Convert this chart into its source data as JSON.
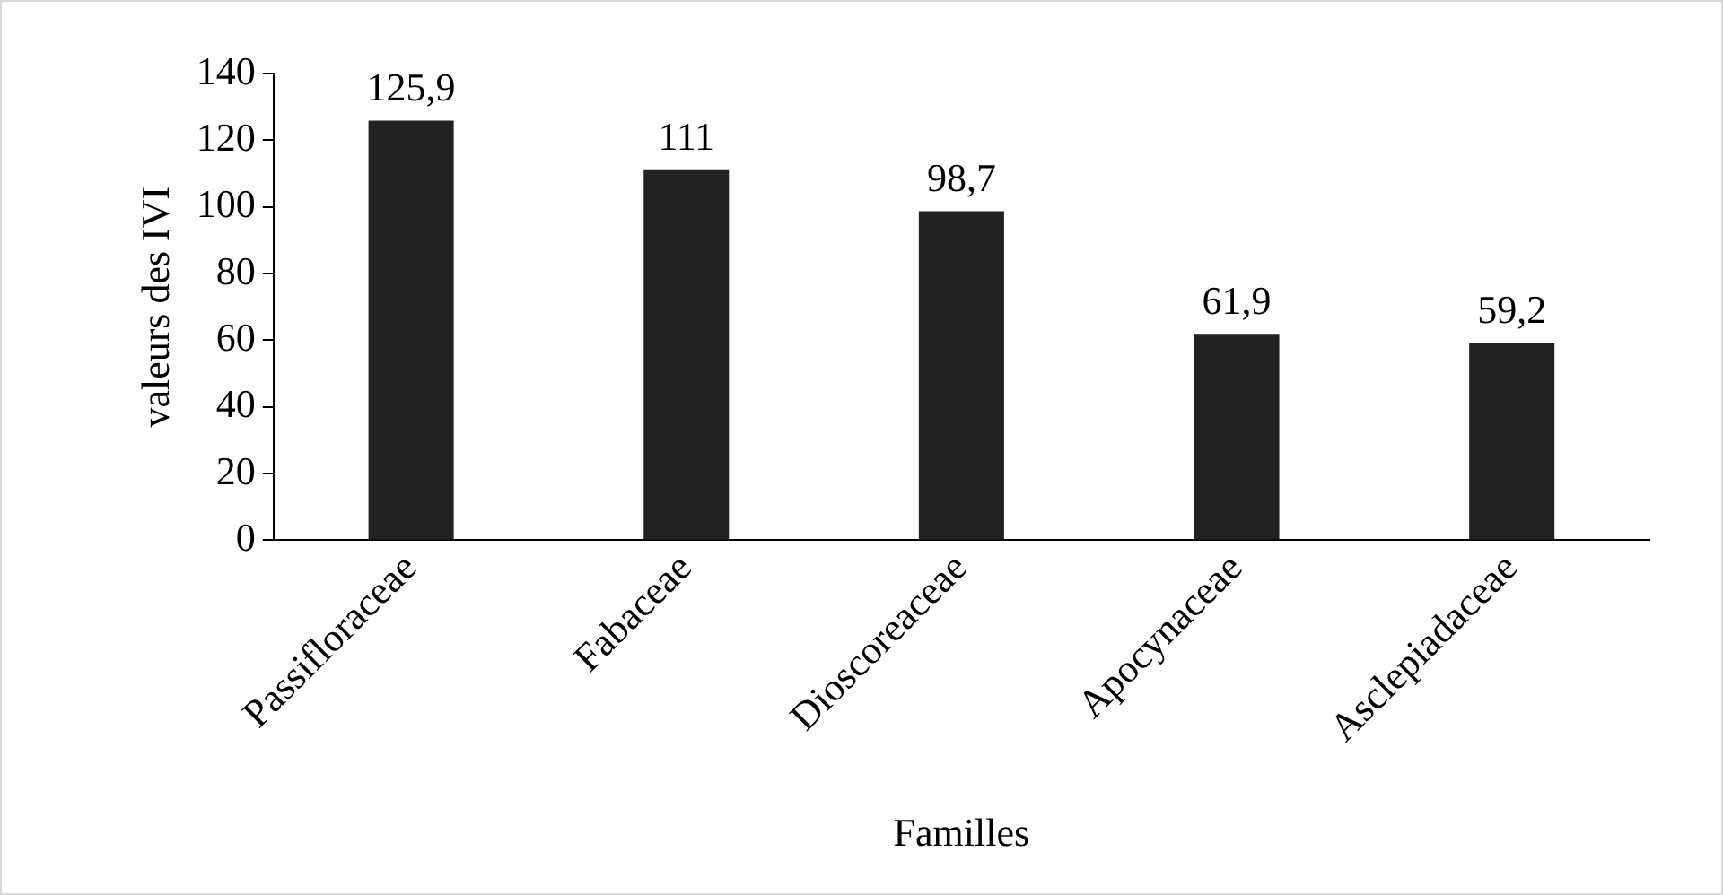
{
  "chart_data": {
    "type": "bar",
    "xlabel": "Familles",
    "ylabel": "valeurs des IVI",
    "categories": [
      "Passifloraceae",
      "Fabaceae",
      "Dioscoreaceae",
      "Apocynaceae",
      "Asclepiadaceae"
    ],
    "values": [
      125.9,
      111,
      98.7,
      61.9,
      59.2
    ],
    "value_labels": [
      "125,9",
      "111",
      "98,7",
      "61,9",
      "59,2"
    ],
    "color": "#222222",
    "ylim": [
      0,
      140
    ],
    "yticks": [
      0,
      20,
      40,
      60,
      80,
      100,
      120,
      140
    ],
    "grid": false,
    "legend": false
  }
}
